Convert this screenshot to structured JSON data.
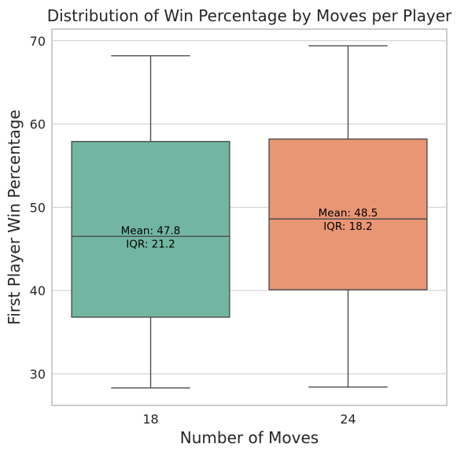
{
  "chart_data": {
    "type": "box",
    "title": "Distribution of Win Percentage by Moves per Player",
    "xlabel": "Number of Moves",
    "ylabel": "First Player Win Percentage",
    "categories": [
      "18",
      "24"
    ],
    "ylim": [
      26.2,
      71.4
    ],
    "yticks": [
      30,
      40,
      50,
      60,
      70
    ],
    "grid": true,
    "boxes": [
      {
        "category": "18",
        "whisker_low": 28.3,
        "q1": 36.8,
        "median": 46.5,
        "q3": 57.9,
        "whisker_high": 68.2,
        "color": "#72b6a1",
        "annotation_mean": "Mean: 47.8",
        "annotation_iqr": "IQR: 21.2"
      },
      {
        "category": "24",
        "whisker_low": 28.4,
        "q1": 40.1,
        "median": 48.6,
        "q3": 58.2,
        "whisker_high": 69.4,
        "color": "#e99675",
        "annotation_mean": "Mean: 48.5",
        "annotation_iqr": "IQR: 18.2"
      }
    ]
  },
  "colors": {
    "frame": "#cccccc",
    "grid": "#cccccc",
    "line": "#4d4d4d"
  }
}
